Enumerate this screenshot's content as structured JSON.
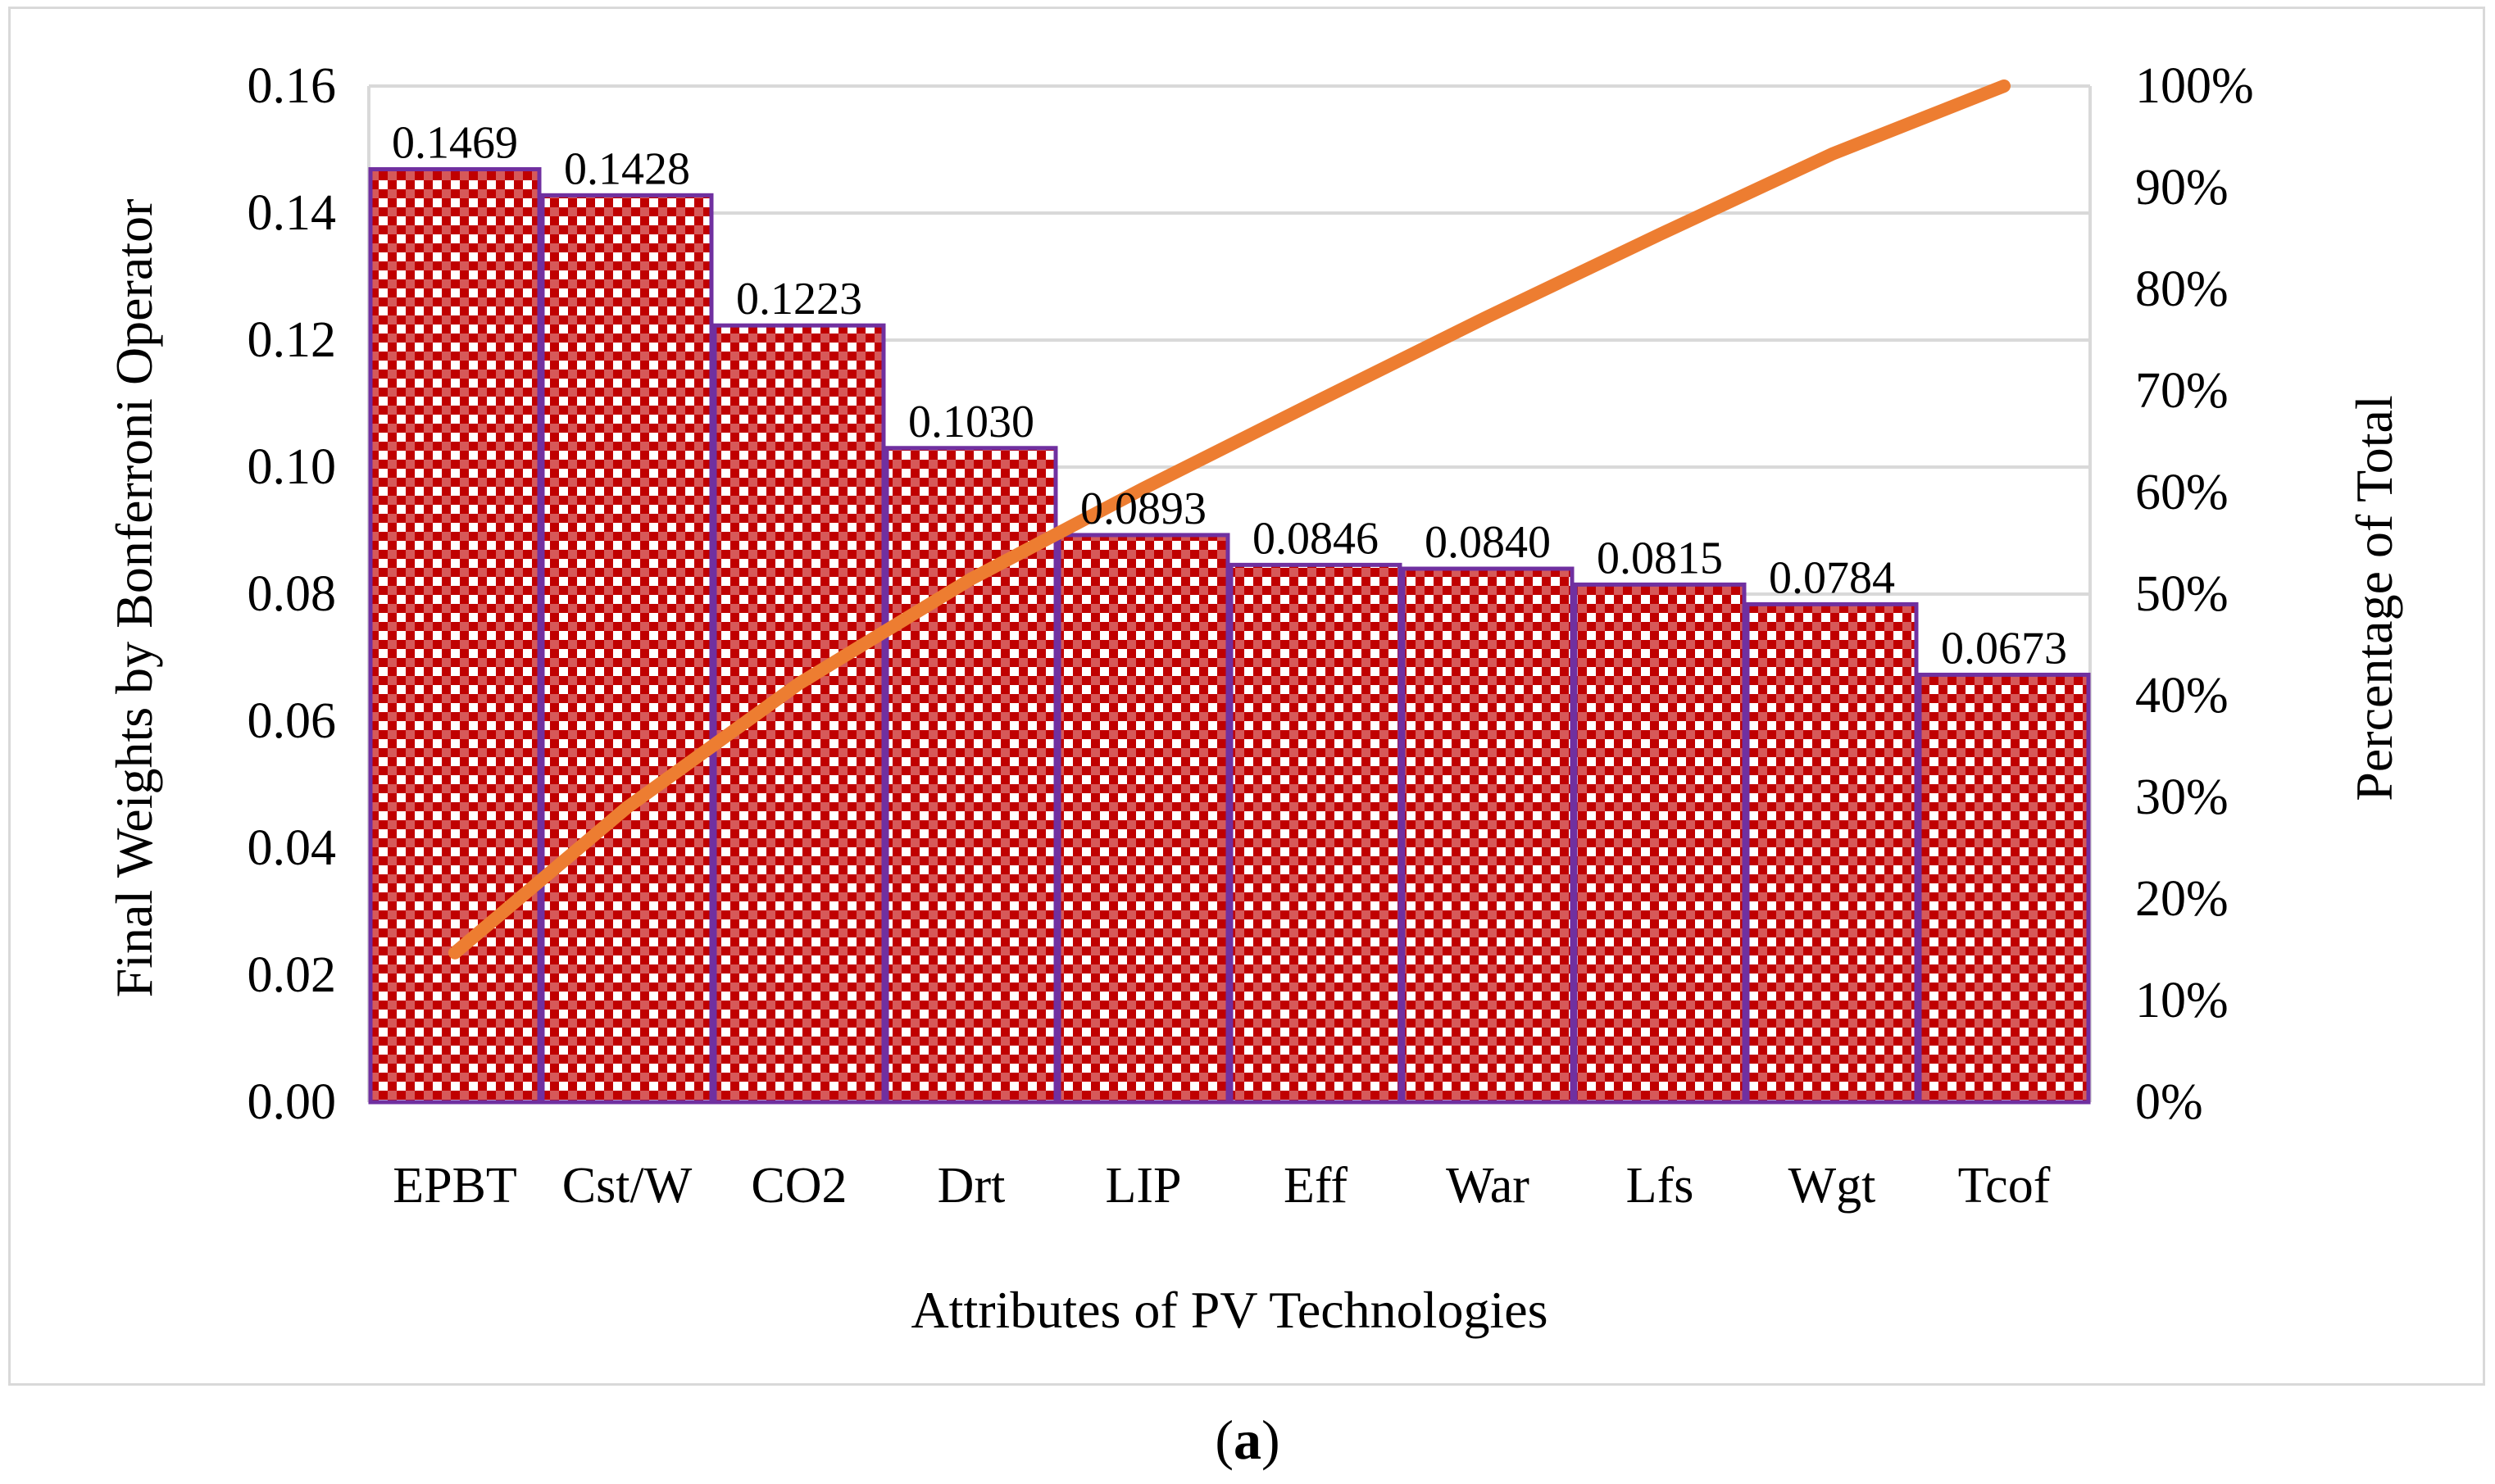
{
  "chart_data": {
    "type": "bar",
    "categories": [
      "EPBT",
      "Cst/W",
      "CO2",
      "Drt",
      "LIP",
      "Eff",
      "War",
      "Lfs",
      "Wgt",
      "Tcof"
    ],
    "series": [
      {
        "type": "bar",
        "values": [
          0.1469,
          0.1428,
          0.1223,
          0.103,
          0.0893,
          0.0846,
          0.084,
          0.0815,
          0.0784,
          0.0673
        ],
        "axis": "left"
      },
      {
        "type": "line",
        "values": [
          14.7,
          29.0,
          41.2,
          51.5,
          60.4,
          68.9,
          77.3,
          85.4,
          93.3,
          100.0
        ],
        "axis": "right",
        "unit": "%"
      }
    ],
    "data_labels": [
      "0.1469",
      "0.1428",
      "0.1223",
      "0.1030",
      "0.0893",
      "0.0846",
      "0.0840",
      "0.0815",
      "0.0784",
      "0.0673"
    ],
    "xlabel": "Attributes of PV Technologies",
    "ylabel": "Final Weights by Bonferroni Operator",
    "y2label": "Percentage of Total",
    "ylim": [
      0,
      0.16
    ],
    "y2lim": [
      0,
      100
    ],
    "yticks": [
      "0.00",
      "0.02",
      "0.04",
      "0.06",
      "0.08",
      "0.10",
      "0.12",
      "0.14",
      "0.16"
    ],
    "y2ticks": [
      "0%",
      "10%",
      "20%",
      "30%",
      "40%",
      "50%",
      "60%",
      "70%",
      "80%",
      "90%",
      "100%"
    ],
    "grid": "horizontal",
    "legend": "none",
    "colors": {
      "bar_fill": "#c00000",
      "bar_pattern_alt": "#ffffff",
      "bar_border": "#7030a0",
      "line": "#ed7d31",
      "grid": "#d9d9d9"
    }
  },
  "caption": {
    "open": "(",
    "letter": "a",
    "close": ")"
  }
}
